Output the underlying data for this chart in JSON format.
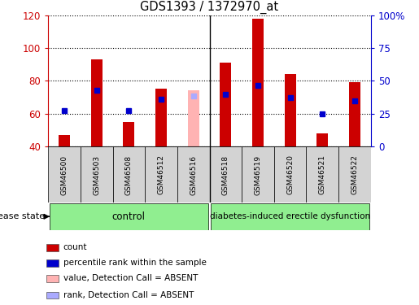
{
  "title": "GDS1393 / 1372970_at",
  "samples": [
    "GSM46500",
    "GSM46503",
    "GSM46508",
    "GSM46512",
    "GSM46516",
    "GSM46518",
    "GSM46519",
    "GSM46520",
    "GSM46521",
    "GSM46522"
  ],
  "bar_values": [
    47,
    93,
    55,
    75,
    74,
    91,
    118,
    84,
    48,
    79
  ],
  "bar_colors": [
    "#cc0000",
    "#cc0000",
    "#cc0000",
    "#cc0000",
    "#ffb3b3",
    "#cc0000",
    "#cc0000",
    "#cc0000",
    "#cc0000",
    "#cc0000"
  ],
  "rank_values": [
    62,
    74,
    62,
    69,
    71,
    72,
    77,
    70,
    60,
    68
  ],
  "rank_colors": [
    "#0000cc",
    "#0000cc",
    "#0000cc",
    "#0000cc",
    "#aaaaff",
    "#0000cc",
    "#0000cc",
    "#0000cc",
    "#0000cc",
    "#0000cc"
  ],
  "ylim": [
    40,
    120
  ],
  "y2lim": [
    0,
    100
  ],
  "yticks": [
    40,
    60,
    80,
    100,
    120
  ],
  "y2ticks": [
    0,
    25,
    50,
    75,
    100
  ],
  "y2ticklabels": [
    "0",
    "25",
    "50",
    "75",
    "100%"
  ],
  "n_control": 5,
  "n_disease": 5,
  "control_label": "control",
  "disease_label": "diabetes-induced erectile dysfunction",
  "disease_state_label": "disease state",
  "legend": [
    {
      "label": "count",
      "color": "#cc0000"
    },
    {
      "label": "percentile rank within the sample",
      "color": "#0000cc"
    },
    {
      "label": "value, Detection Call = ABSENT",
      "color": "#ffb3b3"
    },
    {
      "label": "rank, Detection Call = ABSENT",
      "color": "#aaaaff"
    }
  ],
  "absent_sample_idx": 4,
  "axis_color_left": "#cc0000",
  "axis_color_right": "#0000cc",
  "plot_bg_color": "#ffffff",
  "label_bg_color": "#d3d3d3",
  "group_bg_color": "#90ee90"
}
